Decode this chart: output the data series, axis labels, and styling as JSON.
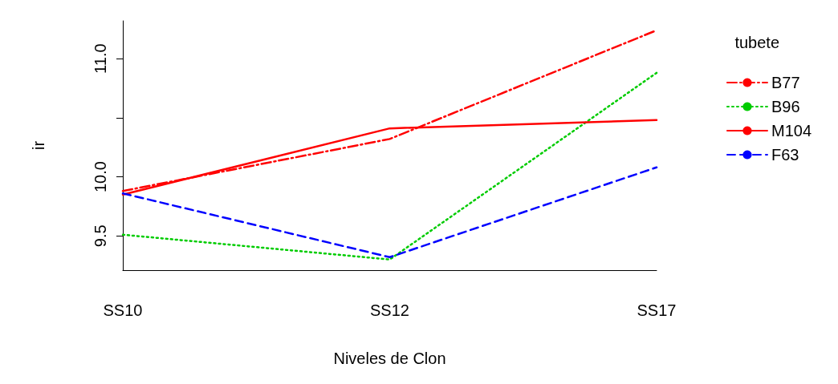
{
  "chart_data": {
    "type": "line",
    "xlabel": "Niveles de Clon",
    "ylabel": "ir",
    "legend_title": "tubete",
    "categories": [
      "SS10",
      "SS12",
      "SS17"
    ],
    "series": [
      {
        "name": "B77",
        "color": "#ff0000",
        "line_style": "dashdot",
        "values": [
          9.88,
          10.32,
          11.24
        ]
      },
      {
        "name": "B96",
        "color": "#00cc00",
        "line_style": "dotted",
        "values": [
          9.51,
          9.3,
          10.88
        ]
      },
      {
        "name": "M104",
        "color": "#ff0000",
        "line_style": "solid",
        "values": [
          9.85,
          10.41,
          10.48
        ]
      },
      {
        "name": "F63",
        "color": "#0000ff",
        "line_style": "dashed",
        "values": [
          9.86,
          9.32,
          10.08
        ]
      }
    ],
    "ylim": [
      9.21,
      11.32
    ],
    "yticks": [
      {
        "value": 9.5,
        "label": "9.5"
      },
      {
        "value": 10,
        "label": "10.0"
      },
      {
        "value": 10.5,
        "label": null
      },
      {
        "value": 11,
        "label": "11.0"
      }
    ],
    "grid": false,
    "legend": "top right",
    "marker": "none"
  }
}
